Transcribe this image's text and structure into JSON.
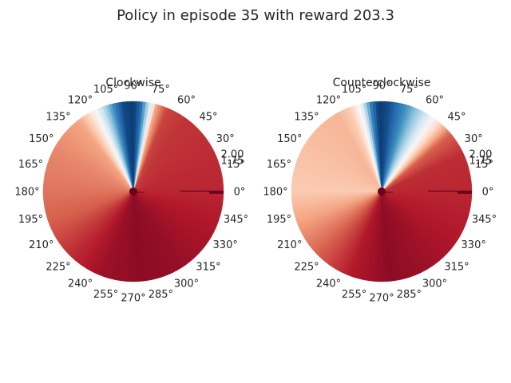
{
  "figure": {
    "title": "Policy in episode 35 with reward 203.3"
  },
  "chart_data": [
    {
      "type": "heatmap",
      "projection": "polar",
      "title": "Clockwise",
      "theta_tick_labels": [
        "0°",
        "15°",
        "30°",
        "45°",
        "60°",
        "75°",
        "90°",
        "105°",
        "120°",
        "135°",
        "150°",
        "165°",
        "180°",
        "195°",
        "210°",
        "225°",
        "240°",
        "255°",
        "270°",
        "285°",
        "300°",
        "315°",
        "330°",
        "345°"
      ],
      "radial_tick_labels": [
        "1.75",
        "2.00"
      ],
      "colormap": "RdBu",
      "color_stops": [
        "#67001f",
        "#b2182b",
        "#d6604d",
        "#f4a582",
        "#fddbc7",
        "#f7f7f7",
        "#d1e5f0",
        "#92c5de",
        "#4393c3",
        "#2166ac",
        "#053061"
      ],
      "value_profile": [
        {
          "theta": 0,
          "value": 0.12
        },
        {
          "theta": 30,
          "value": 0.13
        },
        {
          "theta": 55,
          "value": 0.14
        },
        {
          "theta": 68,
          "value": 0.16
        },
        {
          "theta": 75,
          "value": 0.3
        },
        {
          "theta": 80,
          "value": 0.62
        },
        {
          "theta": 85,
          "value": 0.88
        },
        {
          "theta": 90,
          "value": 0.98
        },
        {
          "theta": 97,
          "value": 0.95
        },
        {
          "theta": 102,
          "value": 0.85
        },
        {
          "theta": 108,
          "value": 0.68
        },
        {
          "theta": 113,
          "value": 0.55
        },
        {
          "theta": 120,
          "value": 0.4
        },
        {
          "theta": 128,
          "value": 0.3
        },
        {
          "theta": 150,
          "value": 0.26
        },
        {
          "theta": 180,
          "value": 0.23
        },
        {
          "theta": 200,
          "value": 0.2
        },
        {
          "theta": 225,
          "value": 0.13
        },
        {
          "theta": 250,
          "value": 0.07
        },
        {
          "theta": 275,
          "value": 0.05
        },
        {
          "theta": 300,
          "value": 0.06
        },
        {
          "theta": 330,
          "value": 0.09
        },
        {
          "theta": 360,
          "value": 0.12
        }
      ]
    },
    {
      "type": "heatmap",
      "projection": "polar",
      "title": "Counterclockwise",
      "theta_tick_labels": [
        "0°",
        "15°",
        "30°",
        "45°",
        "60°",
        "75°",
        "90°",
        "105°",
        "120°",
        "135°",
        "150°",
        "165°",
        "180°",
        "195°",
        "210°",
        "225°",
        "240°",
        "255°",
        "270°",
        "285°",
        "300°",
        "315°",
        "330°",
        "345°"
      ],
      "radial_tick_labels": [
        "1.75",
        "2.00"
      ],
      "colormap": "RdBu",
      "color_stops": [
        "#67001f",
        "#b2182b",
        "#d6604d",
        "#f4a582",
        "#fddbc7",
        "#f7f7f7",
        "#d1e5f0",
        "#92c5de",
        "#4393c3",
        "#2166ac",
        "#053061"
      ],
      "value_profile": [
        {
          "theta": 0,
          "value": 0.12
        },
        {
          "theta": 25,
          "value": 0.13
        },
        {
          "theta": 40,
          "value": 0.2
        },
        {
          "theta": 50,
          "value": 0.4
        },
        {
          "theta": 58,
          "value": 0.55
        },
        {
          "theta": 66,
          "value": 0.68
        },
        {
          "theta": 75,
          "value": 0.82
        },
        {
          "theta": 85,
          "value": 0.94
        },
        {
          "theta": 92,
          "value": 0.98
        },
        {
          "theta": 97,
          "value": 0.85
        },
        {
          "theta": 103,
          "value": 0.55
        },
        {
          "theta": 110,
          "value": 0.38
        },
        {
          "theta": 120,
          "value": 0.33
        },
        {
          "theta": 150,
          "value": 0.35
        },
        {
          "theta": 180,
          "value": 0.37
        },
        {
          "theta": 200,
          "value": 0.3
        },
        {
          "theta": 225,
          "value": 0.2
        },
        {
          "theta": 250,
          "value": 0.1
        },
        {
          "theta": 275,
          "value": 0.05
        },
        {
          "theta": 300,
          "value": 0.07
        },
        {
          "theta": 330,
          "value": 0.1
        },
        {
          "theta": 360,
          "value": 0.12
        }
      ]
    }
  ]
}
